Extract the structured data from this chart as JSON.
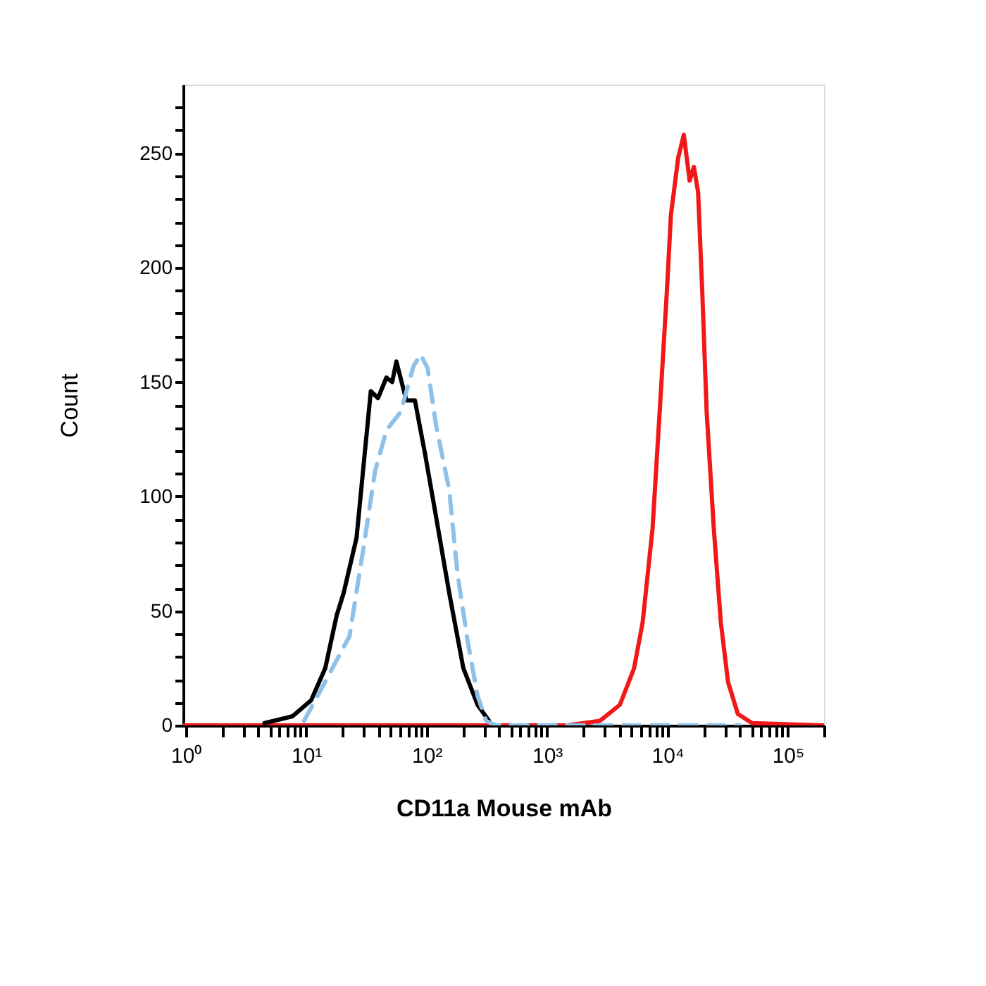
{
  "chart_data": {
    "type": "line",
    "xlabel": "CD11a Mouse mAb",
    "ylabel": "Count",
    "log": "x",
    "grid": false,
    "xlim": [
      0.95,
      200000
    ],
    "ylim": [
      0,
      280
    ],
    "xticks": [
      {
        "value": 1,
        "label": "10⁰"
      },
      {
        "value": 2,
        "label": null
      },
      {
        "value": 3,
        "label": null
      },
      {
        "value": 4,
        "label": null
      },
      {
        "value": 5,
        "label": null
      },
      {
        "value": 6,
        "label": null
      },
      {
        "value": 7,
        "label": null
      },
      {
        "value": 8,
        "label": null
      },
      {
        "value": 9,
        "label": null
      },
      {
        "value": 10,
        "label": "10¹"
      },
      {
        "value": 20,
        "label": null
      },
      {
        "value": 30,
        "label": null
      },
      {
        "value": 40,
        "label": null
      },
      {
        "value": 50,
        "label": null
      },
      {
        "value": 60,
        "label": null
      },
      {
        "value": 70,
        "label": null
      },
      {
        "value": 80,
        "label": null
      },
      {
        "value": 90,
        "label": null
      },
      {
        "value": 100,
        "label": "10²"
      },
      {
        "value": 200,
        "label": null
      },
      {
        "value": 300,
        "label": null
      },
      {
        "value": 400,
        "label": null
      },
      {
        "value": 500,
        "label": null
      },
      {
        "value": 600,
        "label": null
      },
      {
        "value": 700,
        "label": null
      },
      {
        "value": 800,
        "label": null
      },
      {
        "value": 900,
        "label": null
      },
      {
        "value": 1000,
        "label": "10³"
      },
      {
        "value": 2000,
        "label": null
      },
      {
        "value": 3000,
        "label": null
      },
      {
        "value": 4000,
        "label": null
      },
      {
        "value": 5000,
        "label": null
      },
      {
        "value": 6000,
        "label": null
      },
      {
        "value": 7000,
        "label": null
      },
      {
        "value": 8000,
        "label": null
      },
      {
        "value": 9000,
        "label": null
      },
      {
        "value": 10000,
        "label": "10⁴"
      },
      {
        "value": 20000,
        "label": null
      },
      {
        "value": 30000,
        "label": null
      },
      {
        "value": 40000,
        "label": null
      },
      {
        "value": 50000,
        "label": null
      },
      {
        "value": 60000,
        "label": null
      },
      {
        "value": 70000,
        "label": null
      },
      {
        "value": 80000,
        "label": null
      },
      {
        "value": 90000,
        "label": null
      },
      {
        "value": 100000,
        "label": "10⁵"
      },
      {
        "value": 200000,
        "label": null
      }
    ],
    "yticks": [
      0,
      {
        "value": 10,
        "label": null
      },
      {
        "value": 20,
        "label": null
      },
      {
        "value": 30,
        "label": null
      },
      {
        "value": 40,
        "label": null
      },
      50,
      {
        "value": 60,
        "label": null
      },
      {
        "value": 70,
        "label": null
      },
      {
        "value": 80,
        "label": null
      },
      {
        "value": 90,
        "label": null
      },
      100,
      {
        "value": 110,
        "label": null
      },
      {
        "value": 120,
        "label": null
      },
      {
        "value": 130,
        "label": null
      },
      {
        "value": 140,
        "label": null
      },
      150,
      {
        "value": 160,
        "label": null
      },
      {
        "value": 170,
        "label": null
      },
      {
        "value": 180,
        "label": null
      },
      {
        "value": 190,
        "label": null
      },
      200,
      {
        "value": 210,
        "label": null
      },
      {
        "value": 220,
        "label": null
      },
      {
        "value": 230,
        "label": null
      },
      {
        "value": 240,
        "label": null
      },
      250,
      {
        "value": 260,
        "label": null
      },
      {
        "value": 270,
        "label": null
      }
    ],
    "series": [
      {
        "color": "#f01818",
        "line_style": "solid",
        "x": [
          0.95,
          1473,
          2754,
          4030,
          5290,
          6230,
          7530,
          8630,
          9890,
          10700,
          12300,
          13700,
          15300,
          16600,
          18000,
          19500,
          21200,
          24300,
          27800,
          31900,
          38500,
          50600,
          200000
        ],
        "values": [
          0,
          0,
          2,
          9,
          25,
          45,
          86,
          137,
          189,
          223,
          248,
          258,
          238,
          244,
          233,
          189,
          137,
          86,
          45,
          19,
          5,
          1,
          0
        ]
      },
      {
        "color": "#8ec0e8",
        "line_style": "dashed",
        "x": [
          9.6,
          11.9,
          22.9,
          30,
          37.3,
          46.4,
          61,
          77.9,
          89.2,
          102,
          120,
          154,
          181,
          219,
          265,
          312,
          377,
          40000
        ],
        "values": [
          2,
          11,
          39,
          78,
          111,
          129,
          137,
          157,
          162,
          156,
          131,
          103,
          66,
          37,
          13,
          2,
          0,
          0
        ]
      },
      {
        "color": "#000000",
        "line_style": "solid",
        "x": [
          4.5,
          7.7,
          11,
          14.4,
          17.9,
          20.5,
          26.2,
          34.4,
          39.5,
          46.4,
          51.8,
          56.1,
          67.9,
          80,
          96.8,
          120,
          154,
          202,
          265,
          330
        ],
        "values": [
          1,
          4,
          11,
          25,
          48,
          58,
          82,
          146,
          143,
          152,
          150,
          159,
          142,
          142,
          119,
          91,
          58,
          25,
          9,
          2
        ]
      }
    ]
  }
}
